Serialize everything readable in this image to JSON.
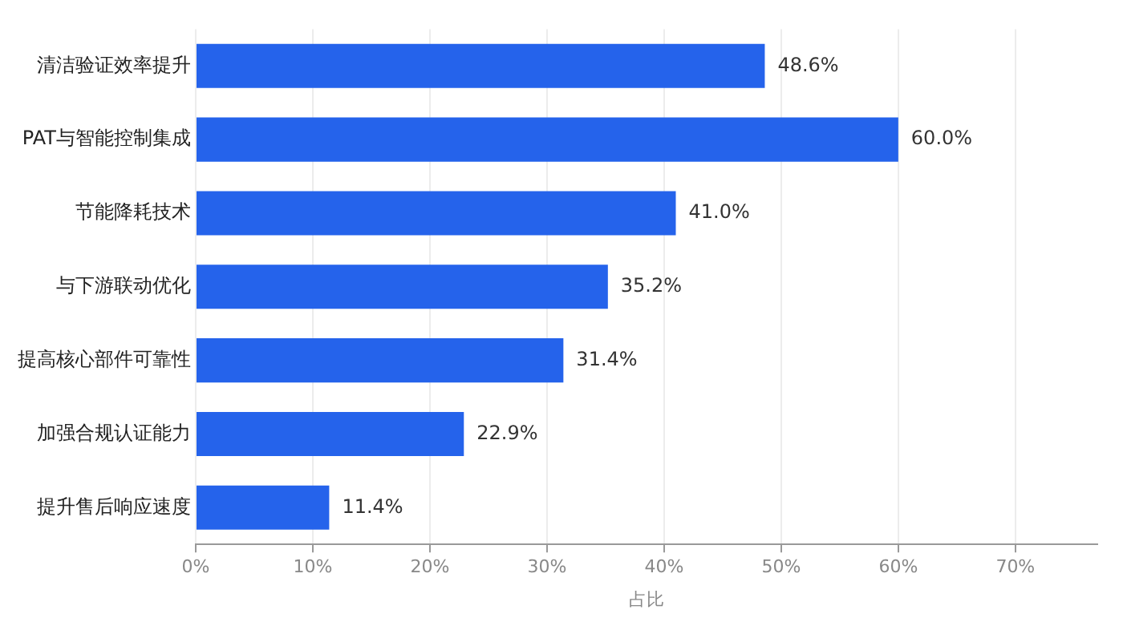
{
  "chart_data": {
    "type": "bar",
    "orientation": "horizontal",
    "xlabel": "占比",
    "categories": [
      "清洁验证效率提升",
      "PAT与智能控制集成",
      "节能降耗技术",
      "与下游联动优化",
      "提高核心部件可靠性",
      "加强合规认证能力",
      "提升售后响应速度"
    ],
    "values": [
      48.6,
      60.0,
      41.0,
      35.2,
      31.4,
      22.9,
      11.4
    ],
    "value_labels": [
      "48.6%",
      "60.0%",
      "41.0%",
      "35.2%",
      "31.4%",
      "22.9%",
      "11.4%"
    ],
    "color": "#2563eb",
    "xlim": [
      0,
      77
    ],
    "xticks": [
      {
        "value": 0,
        "label": "0%"
      },
      {
        "value": 10,
        "label": "10%"
      },
      {
        "value": 20,
        "label": "20%"
      },
      {
        "value": 30,
        "label": "30%"
      },
      {
        "value": 40,
        "label": "40%"
      },
      {
        "value": 50,
        "label": "50%"
      },
      {
        "value": 60,
        "label": "60%"
      },
      {
        "value": 70,
        "label": "70%"
      }
    ],
    "grid": "x"
  }
}
